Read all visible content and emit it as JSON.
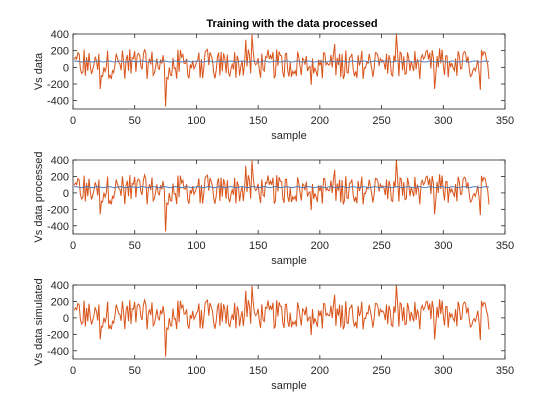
{
  "figure": {
    "title": "Training with the data processed",
    "colors": {
      "background": "#ffffff",
      "axes": "#262626",
      "series_blue": "#4a7ab8",
      "series_orange": "#d95319"
    }
  },
  "chart_data": [
    {
      "type": "line",
      "title": "Training with the data processed",
      "xlabel": "sample",
      "ylabel": "Vs data",
      "xlim": [
        0,
        350
      ],
      "ylim": [
        -500,
        400
      ],
      "xticks": [
        0,
        50,
        100,
        150,
        200,
        250,
        300,
        350
      ],
      "yticks": [
        400,
        200,
        0,
        -200,
        -400
      ],
      "grid": false,
      "series": [
        {
          "color": "#d95319",
          "kind": "noisy",
          "x": [
            1,
            337
          ],
          "key_points": [
            [
              22,
              -260
            ],
            [
              75,
              -470
            ],
            [
              140,
              330
            ],
            [
              145,
              390
            ],
            [
              262,
              410
            ],
            [
              293,
              -260
            ],
            [
              330,
              -270
            ]
          ]
        },
        {
          "color": "#4a7ab8",
          "kind": "flat",
          "level": 70,
          "x": [
            1,
            337
          ]
        }
      ]
    },
    {
      "type": "line",
      "title": "",
      "xlabel": "sample",
      "ylabel": "Vs data processed",
      "xlim": [
        0,
        350
      ],
      "ylim": [
        -500,
        400
      ],
      "xticks": [
        0,
        50,
        100,
        150,
        200,
        250,
        300,
        350
      ],
      "yticks": [
        400,
        200,
        0,
        -200,
        -400
      ],
      "grid": false,
      "series": [
        {
          "color": "#d95319",
          "kind": "noisy",
          "x": [
            1,
            337
          ],
          "key_points": [
            [
              22,
              -260
            ],
            [
              75,
              -470
            ],
            [
              140,
              330
            ],
            [
              145,
              390
            ],
            [
              262,
              410
            ],
            [
              293,
              -260
            ],
            [
              330,
              -270
            ]
          ]
        },
        {
          "color": "#4a7ab8",
          "kind": "flat",
          "level": 70,
          "x": [
            1,
            337
          ]
        }
      ]
    },
    {
      "type": "line",
      "title": "",
      "xlabel": "sample",
      "ylabel": "Vs data simulated",
      "xlim": [
        0,
        350
      ],
      "ylim": [
        -500,
        400
      ],
      "xticks": [
        0,
        50,
        100,
        150,
        200,
        250,
        300,
        350
      ],
      "yticks": [
        400,
        200,
        0,
        -200,
        -400
      ],
      "grid": false,
      "series": [
        {
          "color": "#d95319",
          "kind": "noisy",
          "x": [
            1,
            337
          ],
          "key_points": [
            [
              22,
              -260
            ],
            [
              75,
              -470
            ],
            [
              140,
              330
            ],
            [
              145,
              390
            ],
            [
              262,
              410
            ],
            [
              293,
              -260
            ],
            [
              330,
              -270
            ]
          ]
        }
      ]
    }
  ]
}
